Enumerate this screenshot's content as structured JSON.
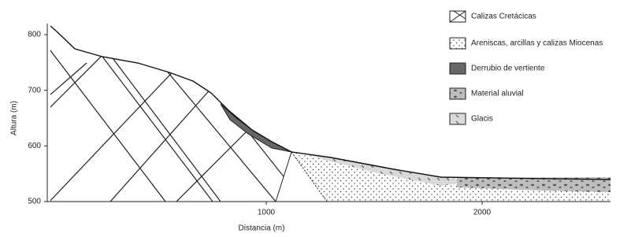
{
  "axes": {
    "x_label": "Distancia (m)",
    "y_label": "Altura (m)",
    "xticks": [
      1000,
      2000
    ],
    "yticks": [
      500,
      600,
      700,
      800
    ]
  },
  "legend": [
    "Calizas Cretácicas",
    "Areniscas, arcillas y calizas Miocenas",
    "Derrubio de vertiente",
    "Material aluvial",
    "Glacis"
  ]
}
